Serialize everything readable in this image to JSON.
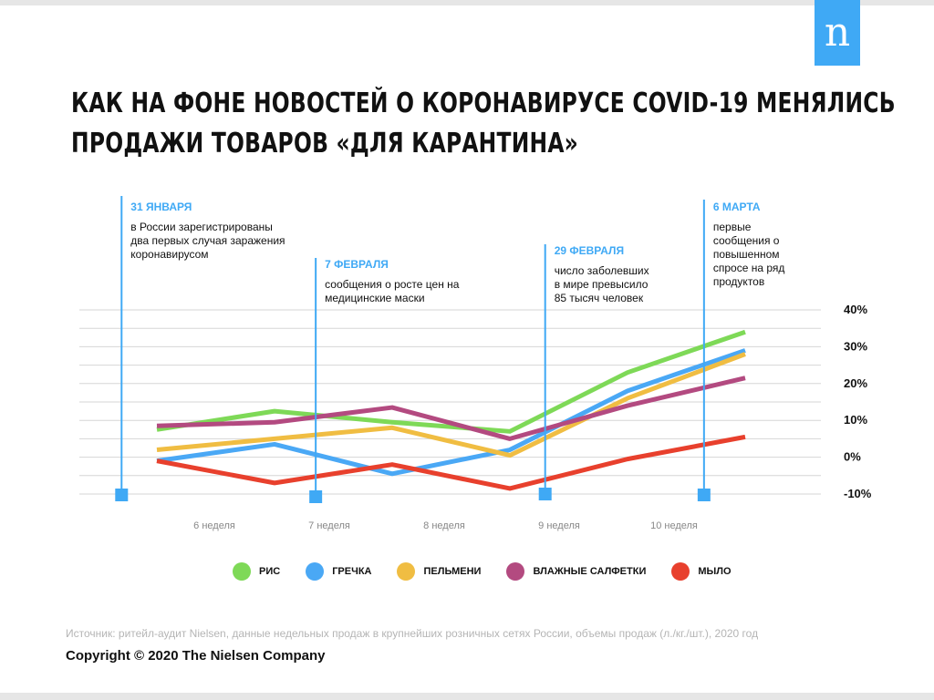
{
  "brand": {
    "logo_letter": "n",
    "logo_color": "#3fa9f5"
  },
  "title": {
    "line1": "КАК НА ФОНЕ НОВОСТЕЙ О КОРОНАВИРУСЕ COVID-19 МЕНЯЛИСЬ",
    "line2": "ПРОДАЖИ ТОВАРОВ «ДЛЯ КАРАНТИНА»"
  },
  "chart_data": {
    "type": "line",
    "x_labels": [
      "6 неделя",
      "7 неделя",
      "8 неделя",
      "9 неделя",
      "10 неделя"
    ],
    "x": [
      0,
      1,
      2,
      3,
      4,
      5
    ],
    "y_ticks": [
      "40%",
      "30%",
      "20%",
      "10%",
      "0%",
      "-10%"
    ],
    "y_tick_values": [
      40,
      30,
      20,
      10,
      0,
      -10
    ],
    "ylim": [
      -10,
      40
    ],
    "grid": true,
    "series": [
      {
        "name": "РИС",
        "color": "#7ed957",
        "values": [
          7.5,
          12.5,
          9.5,
          7,
          23,
          34
        ]
      },
      {
        "name": "ГРЕЧКА",
        "color": "#4aa8f5",
        "values": [
          -1,
          3.5,
          -4.5,
          2,
          18,
          29
        ]
      },
      {
        "name": "ПЕЛЬМЕНИ",
        "color": "#f0bd42",
        "values": [
          2,
          5,
          8,
          0.5,
          16,
          28
        ]
      },
      {
        "name": "ВЛАЖНЫЕ САЛФЕТКИ",
        "color": "#b34a80",
        "values": [
          8.5,
          9.5,
          13.5,
          5,
          14,
          21.5
        ]
      },
      {
        "name": "МЫЛО",
        "color": "#e8402d",
        "values": [
          -1,
          -7,
          -2,
          -8.5,
          -0.5,
          5.5
        ]
      }
    ],
    "events": [
      {
        "date": "31 ЯНВАРЯ",
        "text": [
          "в России зарегистрированы",
          "два первых случая заражения",
          "коронавирусом"
        ],
        "x": -0.3
      },
      {
        "date": "7 ФЕВРАЛЯ",
        "text": [
          "сообщения о росте цен на",
          "медицинские маски"
        ],
        "x": 1.35
      },
      {
        "date": "29 ФЕВРАЛЯ",
        "text": [
          "число заболевших",
          "в мире превысило",
          "85 тысяч человек"
        ],
        "x": 3.3
      },
      {
        "date": "6 МАРТА",
        "text": [
          "первые",
          "сообщения о",
          "повышенном",
          "спросе на ряд",
          "продуктов"
        ],
        "x": 4.65
      }
    ]
  },
  "legend": [
    {
      "label": "РИС",
      "color": "#7ed957"
    },
    {
      "label": "ГРЕЧКА",
      "color": "#4aa8f5"
    },
    {
      "label": "ПЕЛЬМЕНИ",
      "color": "#f0bd42"
    },
    {
      "label": "ВЛАЖНЫЕ САЛФЕТКИ",
      "color": "#b34a80"
    },
    {
      "label": "МЫЛО",
      "color": "#e8402d"
    }
  ],
  "footer": {
    "source": "Источник: ритейл-аудит Nielsen, данные недельных продаж в крупнейших розничных сетях России, объемы продаж (л./кг./шт.), 2020 год",
    "copyright": "Copyright © 2020 The Nielsen Company"
  }
}
